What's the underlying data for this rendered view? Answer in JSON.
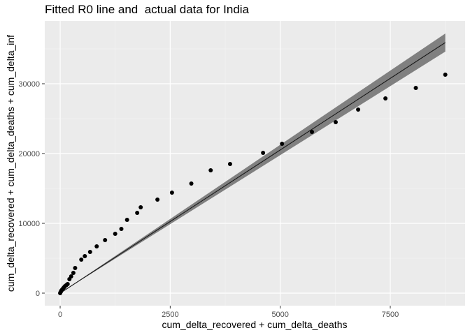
{
  "chart_data": {
    "type": "scatter",
    "title": "Fitted R0 line and  actual data for India",
    "xlabel": "cum_delta_recovered + cum_delta_deaths",
    "ylabel": "cum_delta_recovered + cum_delta_deaths + cum_delta_inf",
    "xlim": [
      -350,
      9200
    ],
    "ylim": [
      -1800,
      39000
    ],
    "x_ticks": [
      0,
      2500,
      5000,
      7500
    ],
    "x_tick_labels": [
      "0",
      "2500",
      "5000",
      "7500"
    ],
    "y_ticks": [
      0,
      10000,
      20000,
      30000
    ],
    "y_tick_labels": [
      "0",
      "10000",
      "20000",
      "30000"
    ],
    "grid": true,
    "legend": "none",
    "points": [
      {
        "x": 0,
        "y": 0
      },
      {
        "x": 10,
        "y": 150
      },
      {
        "x": 20,
        "y": 250
      },
      {
        "x": 30,
        "y": 400
      },
      {
        "x": 50,
        "y": 550
      },
      {
        "x": 70,
        "y": 700
      },
      {
        "x": 90,
        "y": 850
      },
      {
        "x": 110,
        "y": 1000
      },
      {
        "x": 140,
        "y": 1150
      },
      {
        "x": 170,
        "y": 1300
      },
      {
        "x": 210,
        "y": 2000
      },
      {
        "x": 250,
        "y": 2400
      },
      {
        "x": 300,
        "y": 2900
      },
      {
        "x": 340,
        "y": 3600
      },
      {
        "x": 480,
        "y": 4800
      },
      {
        "x": 560,
        "y": 5300
      },
      {
        "x": 680,
        "y": 5900
      },
      {
        "x": 830,
        "y": 6700
      },
      {
        "x": 1020,
        "y": 7600
      },
      {
        "x": 1250,
        "y": 8500
      },
      {
        "x": 1390,
        "y": 9200
      },
      {
        "x": 1520,
        "y": 10500
      },
      {
        "x": 1750,
        "y": 11500
      },
      {
        "x": 1830,
        "y": 12300
      },
      {
        "x": 2210,
        "y": 13400
      },
      {
        "x": 2540,
        "y": 14400
      },
      {
        "x": 2980,
        "y": 15700
      },
      {
        "x": 3420,
        "y": 17600
      },
      {
        "x": 3860,
        "y": 18500
      },
      {
        "x": 4610,
        "y": 20100
      },
      {
        "x": 5040,
        "y": 21400
      },
      {
        "x": 5720,
        "y": 23100
      },
      {
        "x": 6260,
        "y": 24500
      },
      {
        "x": 6770,
        "y": 26300
      },
      {
        "x": 7390,
        "y": 27900
      },
      {
        "x": 8080,
        "y": 29400
      },
      {
        "x": 8750,
        "y": 31300
      }
    ],
    "fit_line": {
      "x": [
        0,
        8750
      ],
      "y": [
        0,
        35900
      ]
    },
    "confidence_band": {
      "x": [
        0,
        8750
      ],
      "lower": [
        0,
        34600
      ],
      "upper": [
        0,
        37200
      ]
    },
    "colors": {
      "panel": "#ebebeb",
      "grid_major": "#ffffff",
      "grid_minor": "#f5f5f5",
      "points": "#000000",
      "line": "#1a1a1a",
      "band": "#808080",
      "axis_text": "#4d4d4d"
    }
  }
}
